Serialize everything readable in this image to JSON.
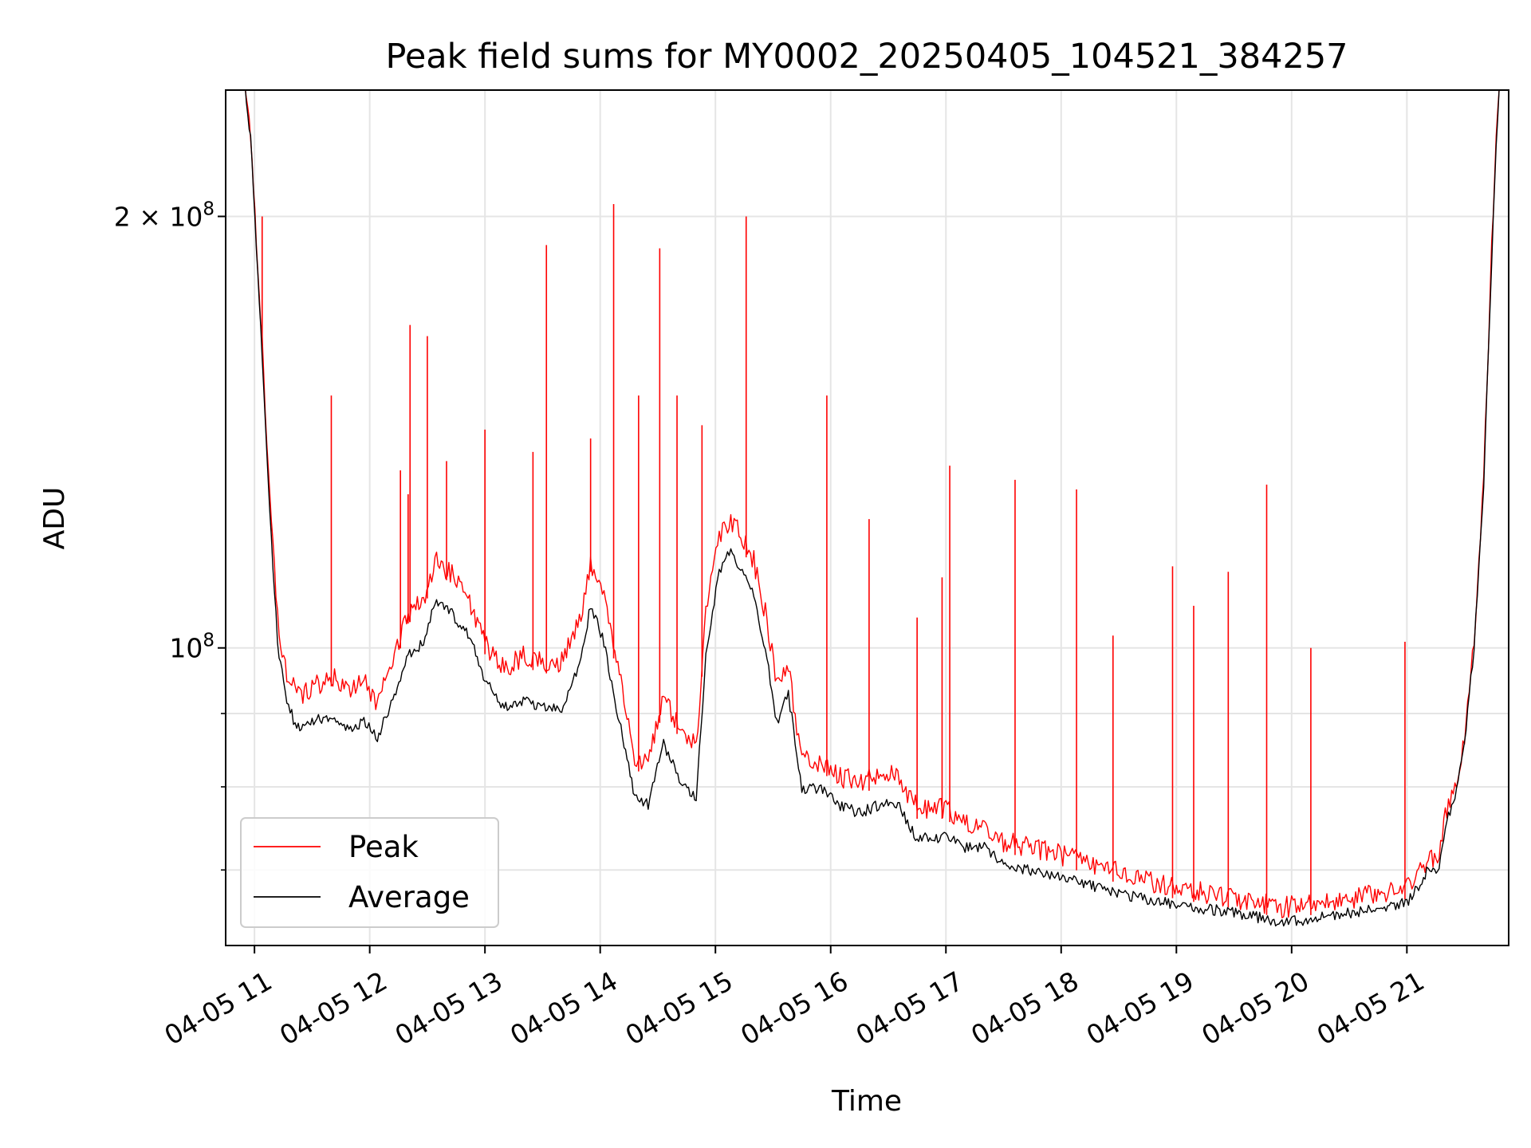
{
  "chart_data": {
    "type": "line",
    "title": "Peak field sums for MY0002_20250405_104521_384257",
    "xlabel": "Time",
    "ylabel": "ADU",
    "y_scale": "log",
    "ylim": [
      62000000,
      245000000
    ],
    "xlim": [
      "2025-04-05T10:45",
      "2025-04-05T21:53"
    ],
    "grid": true,
    "legend_position": "lower-left",
    "x_ticks": [
      {
        "value": "2025-04-05T11:00",
        "label": "04-05 11"
      },
      {
        "value": "2025-04-05T12:00",
        "label": "04-05 12"
      },
      {
        "value": "2025-04-05T13:00",
        "label": "04-05 13"
      },
      {
        "value": "2025-04-05T14:00",
        "label": "04-05 14"
      },
      {
        "value": "2025-04-05T15:00",
        "label": "04-05 15"
      },
      {
        "value": "2025-04-05T16:00",
        "label": "04-05 16"
      },
      {
        "value": "2025-04-05T17:00",
        "label": "04-05 17"
      },
      {
        "value": "2025-04-05T18:00",
        "label": "04-05 18"
      },
      {
        "value": "2025-04-05T19:00",
        "label": "04-05 19"
      },
      {
        "value": "2025-04-05T20:00",
        "label": "04-05 20"
      },
      {
        "value": "2025-04-05T21:00",
        "label": "04-05 21"
      }
    ],
    "y_major_ticks": [
      {
        "value": 100000000,
        "base": "10",
        "exp": "8",
        "mult": ""
      },
      {
        "value": 200000000,
        "base": "10",
        "exp": "8",
        "mult": "2 × "
      }
    ],
    "y_minor_ticks": [
      70000000,
      80000000,
      90000000
    ],
    "series": [
      {
        "name": "Peak",
        "color": "#ff0000",
        "points": [
          [
            "2025-04-05T10:55",
            245000000
          ],
          [
            "2025-04-05T10:58",
            225000000
          ],
          [
            "2025-04-05T11:01",
            190000000
          ],
          [
            "2025-04-05T11:04",
            160000000
          ],
          [
            "2025-04-05T11:08",
            125000000
          ],
          [
            "2025-04-05T11:12",
            103000000
          ],
          [
            "2025-04-05T11:16",
            95000000
          ],
          [
            "2025-04-05T11:22",
            91000000
          ],
          [
            "2025-04-05T11:30",
            92000000
          ],
          [
            "2025-04-05T11:40",
            94000000
          ],
          [
            "2025-04-05T11:50",
            92000000
          ],
          [
            "2025-04-05T11:57",
            93000000
          ],
          [
            "2025-04-05T12:04",
            90000000
          ],
          [
            "2025-04-05T12:12",
            96000000
          ],
          [
            "2025-04-05T12:20",
            104000000
          ],
          [
            "2025-04-05T12:28",
            106000000
          ],
          [
            "2025-04-05T12:34",
            113000000
          ],
          [
            "2025-04-05T12:42",
            111000000
          ],
          [
            "2025-04-05T12:52",
            106000000
          ],
          [
            "2025-04-05T13:00",
            99000000
          ],
          [
            "2025-04-05T13:10",
            95000000
          ],
          [
            "2025-04-05T13:20",
            97000000
          ],
          [
            "2025-04-05T13:30",
            96000000
          ],
          [
            "2025-04-05T13:40",
            96000000
          ],
          [
            "2025-04-05T13:50",
            103000000
          ],
          [
            "2025-04-05T13:55",
            113000000
          ],
          [
            "2025-04-05T14:02",
            106000000
          ],
          [
            "2025-04-05T14:10",
            94000000
          ],
          [
            "2025-04-05T14:18",
            82000000
          ],
          [
            "2025-04-05T14:25",
            82000000
          ],
          [
            "2025-04-05T14:33",
            91000000
          ],
          [
            "2025-04-05T14:42",
            86000000
          ],
          [
            "2025-04-05T14:50",
            84000000
          ],
          [
            "2025-04-05T14:55",
            104000000
          ],
          [
            "2025-04-05T15:02",
            118000000
          ],
          [
            "2025-04-05T15:08",
            121000000
          ],
          [
            "2025-04-05T15:14",
            117000000
          ],
          [
            "2025-04-05T15:20",
            113000000
          ],
          [
            "2025-04-05T15:26",
            104000000
          ],
          [
            "2025-04-05T15:32",
            93000000
          ],
          [
            "2025-04-05T15:38",
            95000000
          ],
          [
            "2025-04-05T15:45",
            82000000
          ],
          [
            "2025-04-05T15:55",
            82000000
          ],
          [
            "2025-04-05T16:05",
            80000000
          ],
          [
            "2025-04-05T16:15",
            79000000
          ],
          [
            "2025-04-05T16:25",
            80000000
          ],
          [
            "2025-04-05T16:35",
            80000000
          ],
          [
            "2025-04-05T16:45",
            76000000
          ],
          [
            "2025-04-05T16:55",
            76000000
          ],
          [
            "2025-04-05T17:00",
            76000000
          ],
          [
            "2025-04-05T17:10",
            74000000
          ],
          [
            "2025-04-05T17:20",
            74000000
          ],
          [
            "2025-04-05T17:30",
            72000000
          ],
          [
            "2025-04-05T17:40",
            71500000
          ],
          [
            "2025-04-05T17:50",
            71000000
          ],
          [
            "2025-04-05T18:00",
            70500000
          ],
          [
            "2025-04-05T18:15",
            69500000
          ],
          [
            "2025-04-05T18:30",
            68500000
          ],
          [
            "2025-04-05T18:45",
            67500000
          ],
          [
            "2025-04-05T19:00",
            66800000
          ],
          [
            "2025-04-05T19:15",
            66300000
          ],
          [
            "2025-04-05T19:30",
            65800000
          ],
          [
            "2025-04-05T19:45",
            65200000
          ],
          [
            "2025-04-05T19:55",
            64800000
          ],
          [
            "2025-04-05T20:05",
            65000000
          ],
          [
            "2025-04-05T20:20",
            65300000
          ],
          [
            "2025-04-05T20:35",
            65800000
          ],
          [
            "2025-04-05T20:50",
            66500000
          ],
          [
            "2025-04-05T21:00",
            66800000
          ],
          [
            "2025-04-05T21:07",
            68500000
          ],
          [
            "2025-04-05T21:12",
            70500000
          ],
          [
            "2025-04-05T21:16",
            69500000
          ],
          [
            "2025-04-05T21:20",
            75000000
          ],
          [
            "2025-04-05T21:25",
            78000000
          ],
          [
            "2025-04-05T21:30",
            85000000
          ],
          [
            "2025-04-05T21:35",
            100000000
          ],
          [
            "2025-04-05T21:40",
            130000000
          ],
          [
            "2025-04-05T21:45",
            200000000
          ],
          [
            "2025-04-05T21:48",
            245000000
          ]
        ],
        "spikes": [
          [
            "2025-04-05T11:04",
            200000000
          ],
          [
            "2025-04-05T11:40",
            150000000
          ],
          [
            "2025-04-05T12:16",
            133000000
          ],
          [
            "2025-04-05T12:20",
            128000000
          ],
          [
            "2025-04-05T12:21",
            168000000
          ],
          [
            "2025-04-05T12:30",
            165000000
          ],
          [
            "2025-04-05T12:40",
            135000000
          ],
          [
            "2025-04-05T13:00",
            142000000
          ],
          [
            "2025-04-05T13:25",
            137000000
          ],
          [
            "2025-04-05T13:32",
            191000000
          ],
          [
            "2025-04-05T13:55",
            140000000
          ],
          [
            "2025-04-05T14:07",
            204000000
          ],
          [
            "2025-04-05T14:20",
            150000000
          ],
          [
            "2025-04-05T14:31",
            190000000
          ],
          [
            "2025-04-05T14:40",
            150000000
          ],
          [
            "2025-04-05T14:53",
            143000000
          ],
          [
            "2025-04-05T15:16",
            200000000
          ],
          [
            "2025-04-05T15:58",
            150000000
          ],
          [
            "2025-04-05T16:20",
            123000000
          ],
          [
            "2025-04-05T16:45",
            105000000
          ],
          [
            "2025-04-05T16:58",
            112000000
          ],
          [
            "2025-04-05T17:02",
            134000000
          ],
          [
            "2025-04-05T17:36",
            131000000
          ],
          [
            "2025-04-05T18:08",
            129000000
          ],
          [
            "2025-04-05T18:27",
            102000000
          ],
          [
            "2025-04-05T18:58",
            114000000
          ],
          [
            "2025-04-05T19:09",
            107000000
          ],
          [
            "2025-04-05T19:27",
            113000000
          ],
          [
            "2025-04-05T19:47",
            130000000
          ],
          [
            "2025-04-05T20:10",
            100000000
          ],
          [
            "2025-04-05T20:59",
            101000000
          ]
        ]
      },
      {
        "name": "Average",
        "color": "#000000",
        "points": [
          [
            "2025-04-05T10:55",
            245000000
          ],
          [
            "2025-04-05T10:58",
            224000000
          ],
          [
            "2025-04-05T11:01",
            188000000
          ],
          [
            "2025-04-05T11:04",
            158000000
          ],
          [
            "2025-04-05T11:08",
            123000000
          ],
          [
            "2025-04-05T11:12",
            100000000
          ],
          [
            "2025-04-05T11:16",
            92000000
          ],
          [
            "2025-04-05T11:22",
            87000000
          ],
          [
            "2025-04-05T11:30",
            88000000
          ],
          [
            "2025-04-05T11:40",
            89000000
          ],
          [
            "2025-04-05T11:50",
            87000000
          ],
          [
            "2025-04-05T11:57",
            88000000
          ],
          [
            "2025-04-05T12:04",
            86000000
          ],
          [
            "2025-04-05T12:12",
            91000000
          ],
          [
            "2025-04-05T12:20",
            98000000
          ],
          [
            "2025-04-05T12:28",
            100000000
          ],
          [
            "2025-04-05T12:34",
            107000000
          ],
          [
            "2025-04-05T12:42",
            105000000
          ],
          [
            "2025-04-05T12:52",
            101000000
          ],
          [
            "2025-04-05T13:00",
            94000000
          ],
          [
            "2025-04-05T13:10",
            90000000
          ],
          [
            "2025-04-05T13:20",
            91000000
          ],
          [
            "2025-04-05T13:30",
            90000000
          ],
          [
            "2025-04-05T13:40",
            90000000
          ],
          [
            "2025-04-05T13:50",
            97000000
          ],
          [
            "2025-04-05T13:55",
            106000000
          ],
          [
            "2025-04-05T14:02",
            100000000
          ],
          [
            "2025-04-05T14:10",
            88000000
          ],
          [
            "2025-04-05T14:18",
            78000000
          ],
          [
            "2025-04-05T14:25",
            77000000
          ],
          [
            "2025-04-05T14:33",
            85000000
          ],
          [
            "2025-04-05T14:42",
            80000000
          ],
          [
            "2025-04-05T14:50",
            78000000
          ],
          [
            "2025-04-05T14:55",
            98000000
          ],
          [
            "2025-04-05T15:02",
            112000000
          ],
          [
            "2025-04-05T15:08",
            116000000
          ],
          [
            "2025-04-05T15:14",
            112000000
          ],
          [
            "2025-04-05T15:20",
            108000000
          ],
          [
            "2025-04-05T15:26",
            99000000
          ],
          [
            "2025-04-05T15:32",
            88000000
          ],
          [
            "2025-04-05T15:38",
            92000000
          ],
          [
            "2025-04-05T15:45",
            79000000
          ],
          [
            "2025-04-05T15:55",
            79000000
          ],
          [
            "2025-04-05T16:05",
            77000000
          ],
          [
            "2025-04-05T16:15",
            76000000
          ],
          [
            "2025-04-05T16:25",
            77000000
          ],
          [
            "2025-04-05T16:35",
            77000000
          ],
          [
            "2025-04-05T16:45",
            73000000
          ],
          [
            "2025-04-05T16:55",
            73000000
          ],
          [
            "2025-04-05T17:00",
            73500000
          ],
          [
            "2025-04-05T17:10",
            72000000
          ],
          [
            "2025-04-05T17:20",
            72000000
          ],
          [
            "2025-04-05T17:30",
            70000000
          ],
          [
            "2025-04-05T17:40",
            69500000
          ],
          [
            "2025-04-05T17:50",
            69000000
          ],
          [
            "2025-04-05T18:00",
            68500000
          ],
          [
            "2025-04-05T18:15",
            67700000
          ],
          [
            "2025-04-05T18:30",
            66900000
          ],
          [
            "2025-04-05T18:45",
            66100000
          ],
          [
            "2025-04-05T19:00",
            65600000
          ],
          [
            "2025-04-05T19:15",
            65200000
          ],
          [
            "2025-04-05T19:30",
            64800000
          ],
          [
            "2025-04-05T19:45",
            64200000
          ],
          [
            "2025-04-05T19:55",
            63800000
          ],
          [
            "2025-04-05T20:05",
            64000000
          ],
          [
            "2025-04-05T20:20",
            64400000
          ],
          [
            "2025-04-05T20:35",
            64900000
          ],
          [
            "2025-04-05T20:50",
            65500000
          ],
          [
            "2025-04-05T21:00",
            65800000
          ],
          [
            "2025-04-05T21:07",
            67800000
          ],
          [
            "2025-04-05T21:12",
            69800000
          ],
          [
            "2025-04-05T21:16",
            69000000
          ],
          [
            "2025-04-05T21:20",
            74500000
          ],
          [
            "2025-04-05T21:25",
            77500000
          ],
          [
            "2025-04-05T21:30",
            84500000
          ],
          [
            "2025-04-05T21:35",
            99500000
          ],
          [
            "2025-04-05T21:40",
            129000000
          ],
          [
            "2025-04-05T21:45",
            199000000
          ],
          [
            "2025-04-05T21:48",
            245000000
          ]
        ]
      }
    ]
  }
}
